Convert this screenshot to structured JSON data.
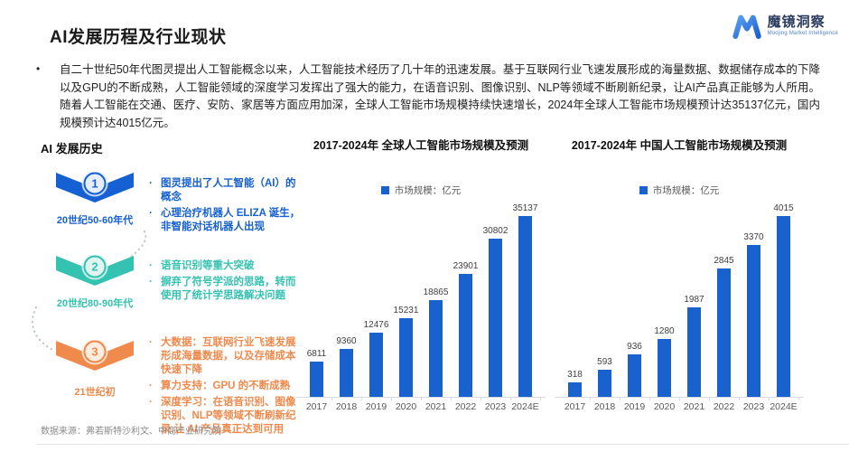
{
  "header": {
    "title": "AI发展历程及行业现状",
    "logo": {
      "brand": "魔镜洞察",
      "tagline": "Moojing Market Intelligence",
      "accent": "#2E7CE0"
    }
  },
  "intro": {
    "bullet": "•",
    "text": "自二十世纪50年代图灵提出人工智能概念以来，人工智能技术经历了几十年的迅速发展。基于互联网行业飞速发展形成的海量数据、数据储存成本的下降以及GPU的不断成熟，人工智能领域的深度学习发挥出了强大的能力，在语音识别、图像识别、NLP等领域不断刷新纪录，让AI产品真正能够为人所用。随着人工智能在交通、医疗、安防、家居等方面应用加深，全球人工智能市场规模持续快速增长，2024年全球人工智能市场规模预计达35137亿元，国内规模预计达4015亿元。"
  },
  "timeline": {
    "heading": "AI 发展历史",
    "stages": [
      {
        "number": "1",
        "period": "20世纪50-60年代",
        "color": "#1560D2",
        "tint": "#E7EEFB",
        "bullets": [
          "图灵提出了人工智能（AI）的概念",
          "心理治疗机器人 ELIZA 诞生，非智能对话机器人出现"
        ]
      },
      {
        "number": "2",
        "period": "20世纪80-90年代",
        "color": "#34C2B1",
        "tint": "#E0F5F2",
        "bullets": [
          "语音识别等重大突破",
          "摒弃了符号学派的思路，转而使用了统计学思路解决问题"
        ]
      },
      {
        "number": "3",
        "period": "21世纪初",
        "color": "#F0894C",
        "tint": "#FDECE0",
        "bullets": [
          "大数据：互联网行业飞速发展形成海量数据，以及存储成本快速下降",
          "算力支持：GPU 的不断成熟",
          "深度学习：在语音识别、图像识别、NLP等领域不断刷新纪录,让 AI 产品真正达到可用"
        ]
      }
    ]
  },
  "chart_data": [
    {
      "type": "bar",
      "title": "2017-2024年 全球人工智能市场规模及预测",
      "legend": "市场规模：亿元",
      "categories": [
        "2017",
        "2018",
        "2019",
        "2020",
        "2021",
        "2022",
        "2023",
        "2024E"
      ],
      "values": [
        6811,
        9360,
        12476,
        15231,
        18865,
        23901,
        30802,
        35137
      ],
      "ylabel": "亿元",
      "ylim": [
        0,
        35137
      ],
      "bar_color": "#1961CC",
      "grid": false,
      "legend_position": "top"
    },
    {
      "type": "bar",
      "title": "2017-2024年 中国人工智能市场规模及预测",
      "legend": "市场规模：亿元",
      "categories": [
        "2017",
        "2018",
        "2019",
        "2020",
        "2021",
        "2022",
        "2023",
        "2024E"
      ],
      "values": [
        318,
        593,
        936,
        1280,
        1987,
        2845,
        3370,
        4015
      ],
      "ylabel": "亿元",
      "ylim": [
        0,
        4015
      ],
      "bar_color": "#1961CC",
      "grid": false,
      "legend_position": "top"
    }
  ],
  "footer": {
    "source": "数据来源：弗若斯特沙利文、中商产业研究院"
  }
}
